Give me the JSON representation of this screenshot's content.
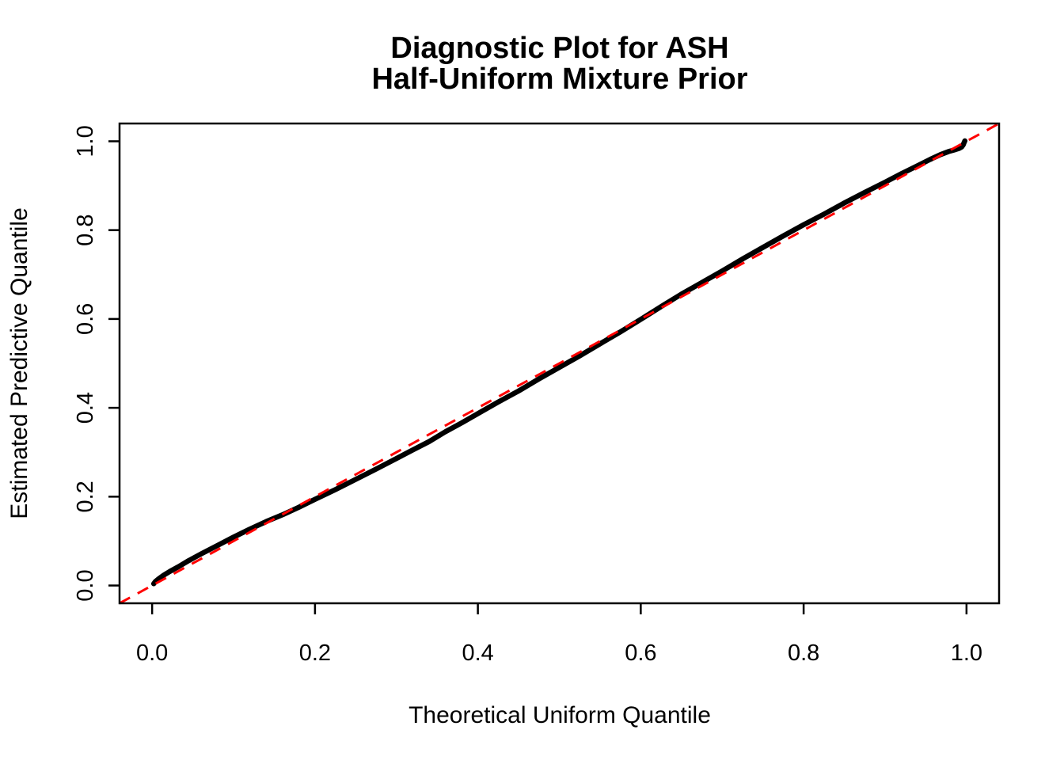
{
  "figure": {
    "background_color": "#FFFFFF",
    "frame_color": "#000000"
  },
  "chart_data": {
    "type": "scatter",
    "title": "Diagnostic Plot for ASH",
    "subtitle": "Half-Uniform Mixture Prior",
    "xlabel": "Theoretical Uniform Quantile",
    "ylabel": "Estimated Predictive Quantile",
    "xlim": [
      -0.04,
      1.04
    ],
    "ylim": [
      -0.04,
      1.04
    ],
    "xtick_values": [
      0.0,
      0.2,
      0.4,
      0.6,
      0.8,
      1.0
    ],
    "xtick_labels": [
      "0.0",
      "0.2",
      "0.4",
      "0.6",
      "0.8",
      "1.0"
    ],
    "ytick_values": [
      0.0,
      0.2,
      0.4,
      0.6,
      0.8,
      1.0
    ],
    "ytick_labels": [
      "0.0",
      "0.2",
      "0.4",
      "0.6",
      "0.8",
      "1.0"
    ],
    "grid": false,
    "frame": true,
    "legend": null,
    "series": [
      {
        "name": "estimated-predictive-quantiles",
        "type": "points",
        "marker": "filled-circle",
        "color": "#000000",
        "x": [
          0.002,
          0.004,
          0.008,
          0.014,
          0.022,
          0.032,
          0.045,
          0.06,
          0.08,
          0.1,
          0.12,
          0.14,
          0.16,
          0.18,
          0.2,
          0.225,
          0.25,
          0.275,
          0.3,
          0.32,
          0.34,
          0.36,
          0.38,
          0.4,
          0.425,
          0.45,
          0.475,
          0.5,
          0.525,
          0.55,
          0.575,
          0.6,
          0.625,
          0.65,
          0.675,
          0.7,
          0.725,
          0.75,
          0.775,
          0.8,
          0.825,
          0.85,
          0.875,
          0.9,
          0.92,
          0.94,
          0.955,
          0.968,
          0.978,
          0.986,
          0.991,
          0.994,
          0.996,
          0.997,
          0.998
        ],
        "y": [
          0.004,
          0.009,
          0.015,
          0.023,
          0.032,
          0.042,
          0.056,
          0.071,
          0.09,
          0.109,
          0.127,
          0.144,
          0.159,
          0.176,
          0.194,
          0.216,
          0.239,
          0.262,
          0.286,
          0.305,
          0.324,
          0.346,
          0.366,
          0.387,
          0.413,
          0.438,
          0.465,
          0.491,
          0.517,
          0.544,
          0.571,
          0.599,
          0.628,
          0.656,
          0.682,
          0.708,
          0.735,
          0.761,
          0.787,
          0.812,
          0.836,
          0.861,
          0.885,
          0.908,
          0.927,
          0.945,
          0.959,
          0.97,
          0.977,
          0.981,
          0.984,
          0.987,
          0.992,
          0.997,
          1.001
        ]
      },
      {
        "name": "identity-reference-line",
        "type": "line",
        "linestyle": "dashed",
        "color": "#FF0000",
        "x": [
          -0.04,
          1.04
        ],
        "y": [
          -0.04,
          1.04
        ]
      }
    ]
  }
}
